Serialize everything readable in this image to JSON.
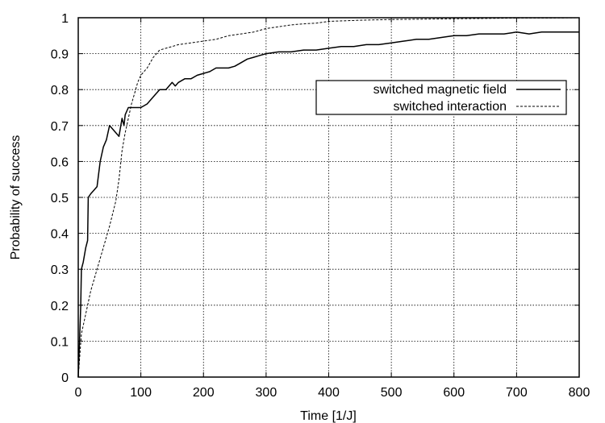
{
  "chart_data": {
    "type": "line",
    "title": "",
    "xlabel": "Time [1/J]",
    "ylabel": "Probability of success",
    "xlim": [
      0,
      800
    ],
    "ylim": [
      0,
      1
    ],
    "x_ticks": [
      0,
      100,
      200,
      300,
      400,
      500,
      600,
      700,
      800
    ],
    "y_ticks": [
      0,
      0.1,
      0.2,
      0.3,
      0.4,
      0.5,
      0.6,
      0.7,
      0.8,
      0.9,
      1
    ],
    "x_tick_labels": [
      "0",
      "100",
      "200",
      "300",
      "400",
      "500",
      "600",
      "700",
      "800"
    ],
    "y_tick_labels": [
      "0",
      "0.1",
      "0.2",
      "0.3",
      "0.4",
      "0.5",
      "0.6",
      "0.7",
      "0.8",
      "0.9",
      "1"
    ],
    "grid": true,
    "legend_position": "top-right",
    "series": [
      {
        "name": "switched magnetic field",
        "style": "solid",
        "color": "#000000",
        "points": [
          [
            0,
            0
          ],
          [
            2,
            0.1
          ],
          [
            4,
            0.2
          ],
          [
            5,
            0.3
          ],
          [
            8,
            0.32
          ],
          [
            12,
            0.36
          ],
          [
            15,
            0.38
          ],
          [
            16,
            0.5
          ],
          [
            20,
            0.51
          ],
          [
            25,
            0.52
          ],
          [
            30,
            0.53
          ],
          [
            35,
            0.6
          ],
          [
            40,
            0.64
          ],
          [
            45,
            0.66
          ],
          [
            50,
            0.7
          ],
          [
            55,
            0.69
          ],
          [
            60,
            0.68
          ],
          [
            65,
            0.67
          ],
          [
            68,
            0.7
          ],
          [
            70,
            0.72
          ],
          [
            73,
            0.7
          ],
          [
            75,
            0.73
          ],
          [
            80,
            0.75
          ],
          [
            85,
            0.75
          ],
          [
            90,
            0.75
          ],
          [
            95,
            0.75
          ],
          [
            100,
            0.75
          ],
          [
            110,
            0.76
          ],
          [
            120,
            0.78
          ],
          [
            130,
            0.8
          ],
          [
            140,
            0.8
          ],
          [
            150,
            0.82
          ],
          [
            155,
            0.81
          ],
          [
            160,
            0.82
          ],
          [
            170,
            0.83
          ],
          [
            180,
            0.83
          ],
          [
            190,
            0.84
          ],
          [
            200,
            0.845
          ],
          [
            210,
            0.85
          ],
          [
            220,
            0.86
          ],
          [
            230,
            0.86
          ],
          [
            240,
            0.86
          ],
          [
            250,
            0.865
          ],
          [
            260,
            0.875
          ],
          [
            270,
            0.885
          ],
          [
            280,
            0.89
          ],
          [
            290,
            0.895
          ],
          [
            300,
            0.9
          ],
          [
            320,
            0.905
          ],
          [
            340,
            0.905
          ],
          [
            360,
            0.91
          ],
          [
            380,
            0.91
          ],
          [
            400,
            0.915
          ],
          [
            420,
            0.92
          ],
          [
            440,
            0.92
          ],
          [
            460,
            0.925
          ],
          [
            480,
            0.925
          ],
          [
            500,
            0.93
          ],
          [
            520,
            0.935
          ],
          [
            540,
            0.94
          ],
          [
            560,
            0.94
          ],
          [
            580,
            0.945
          ],
          [
            600,
            0.95
          ],
          [
            620,
            0.95
          ],
          [
            640,
            0.955
          ],
          [
            660,
            0.955
          ],
          [
            680,
            0.955
          ],
          [
            700,
            0.96
          ],
          [
            720,
            0.955
          ],
          [
            740,
            0.96
          ],
          [
            760,
            0.96
          ],
          [
            780,
            0.96
          ],
          [
            800,
            0.96
          ]
        ]
      },
      {
        "name": "switched interaction",
        "style": "dashed",
        "color": "#000000",
        "points": [
          [
            0,
            0
          ],
          [
            2,
            0.05
          ],
          [
            5,
            0.12
          ],
          [
            10,
            0.16
          ],
          [
            20,
            0.24
          ],
          [
            30,
            0.3
          ],
          [
            40,
            0.36
          ],
          [
            50,
            0.42
          ],
          [
            60,
            0.49
          ],
          [
            65,
            0.55
          ],
          [
            70,
            0.63
          ],
          [
            75,
            0.68
          ],
          [
            80,
            0.72
          ],
          [
            85,
            0.76
          ],
          [
            90,
            0.79
          ],
          [
            95,
            0.82
          ],
          [
            100,
            0.84
          ],
          [
            110,
            0.86
          ],
          [
            120,
            0.89
          ],
          [
            130,
            0.91
          ],
          [
            140,
            0.915
          ],
          [
            150,
            0.92
          ],
          [
            160,
            0.925
          ],
          [
            180,
            0.93
          ],
          [
            200,
            0.935
          ],
          [
            220,
            0.94
          ],
          [
            240,
            0.95
          ],
          [
            260,
            0.955
          ],
          [
            280,
            0.96
          ],
          [
            300,
            0.97
          ],
          [
            320,
            0.975
          ],
          [
            340,
            0.98
          ],
          [
            360,
            0.983
          ],
          [
            380,
            0.985
          ],
          [
            400,
            0.99
          ],
          [
            450,
            0.993
          ],
          [
            500,
            0.995
          ],
          [
            550,
            0.996
          ],
          [
            600,
            0.997
          ],
          [
            650,
            0.998
          ],
          [
            700,
            0.999
          ],
          [
            750,
            0.999
          ],
          [
            800,
            1.0
          ]
        ]
      }
    ]
  }
}
